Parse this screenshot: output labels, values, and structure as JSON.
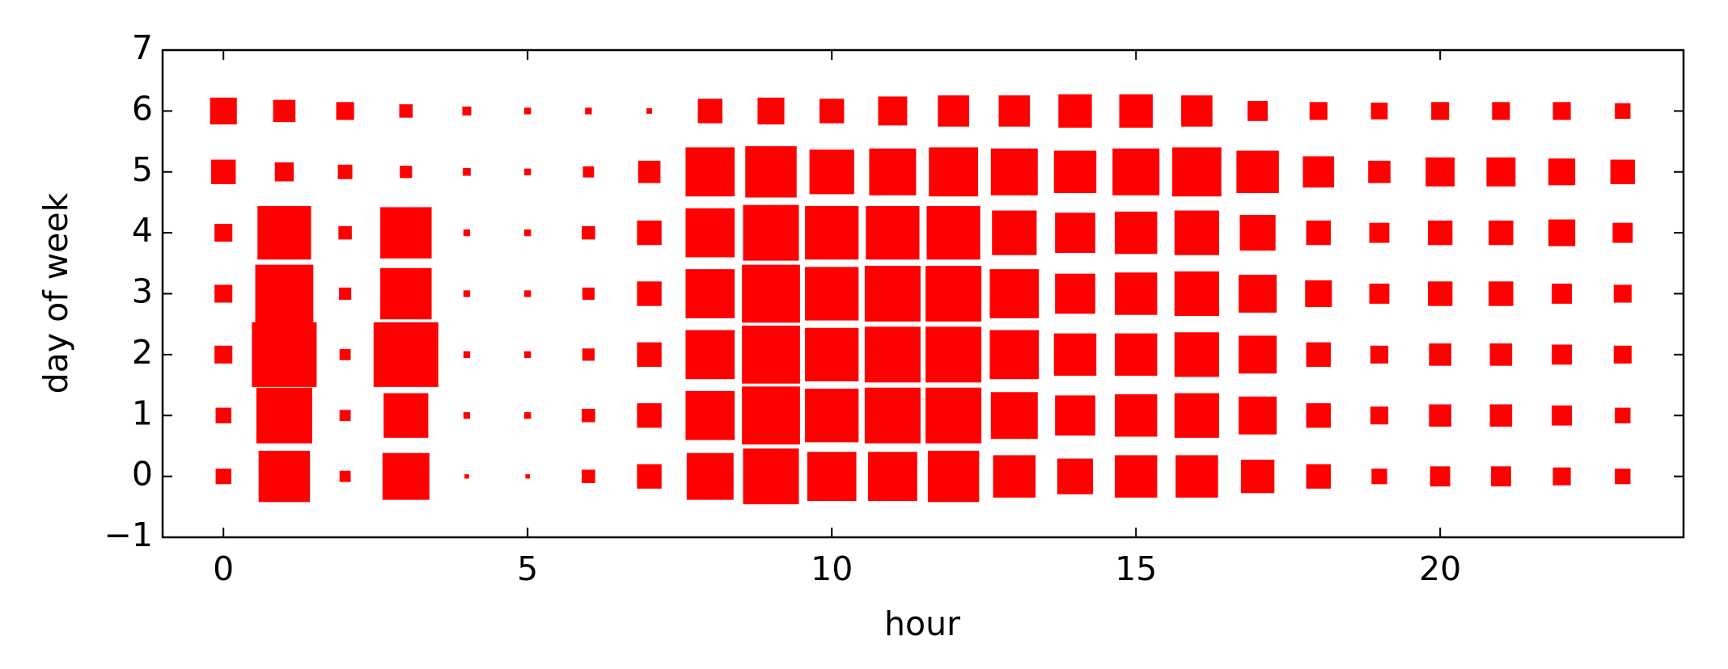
{
  "chart_data": {
    "type": "scatter",
    "marker": "square",
    "color": "#ff0000",
    "x_label": "hour",
    "y_label": "day of week",
    "xlim": [
      -1,
      24
    ],
    "ylim": [
      -1,
      7
    ],
    "xticks": [
      0,
      5,
      10,
      15,
      20
    ],
    "yticks": [
      {
        "value": -1,
        "label": "−1"
      },
      0,
      1,
      2,
      3,
      4,
      5,
      6,
      7
    ],
    "x": [
      0,
      1,
      2,
      3,
      4,
      5,
      6,
      7,
      8,
      9,
      10,
      11,
      12,
      13,
      14,
      15,
      16,
      17,
      18,
      19,
      20,
      21,
      22,
      23,
      0,
      1,
      2,
      3,
      4,
      5,
      6,
      7,
      8,
      9,
      10,
      11,
      12,
      13,
      14,
      15,
      16,
      17,
      18,
      19,
      20,
      21,
      22,
      23,
      0,
      1,
      2,
      3,
      4,
      5,
      6,
      7,
      8,
      9,
      10,
      11,
      12,
      13,
      14,
      15,
      16,
      17,
      18,
      19,
      20,
      21,
      22,
      23,
      0,
      1,
      2,
      3,
      4,
      5,
      6,
      7,
      8,
      9,
      10,
      11,
      12,
      13,
      14,
      15,
      16,
      17,
      18,
      19,
      20,
      21,
      22,
      23,
      0,
      1,
      2,
      3,
      4,
      5,
      6,
      7,
      8,
      9,
      10,
      11,
      12,
      13,
      14,
      15,
      16,
      17,
      18,
      19,
      20,
      21,
      22,
      23,
      0,
      1,
      2,
      3,
      4,
      5,
      6,
      7,
      8,
      9,
      10,
      11,
      12,
      13,
      14,
      15,
      16,
      17,
      18,
      19,
      20,
      21,
      22,
      23,
      0,
      1,
      2,
      3,
      4,
      5,
      6,
      7,
      8,
      9,
      10,
      11,
      12,
      13,
      14,
      15,
      16,
      17,
      18,
      19,
      20,
      21,
      22,
      23
    ],
    "y": [
      0,
      0,
      0,
      0,
      0,
      0,
      0,
      0,
      0,
      0,
      0,
      0,
      0,
      0,
      0,
      0,
      0,
      0,
      0,
      0,
      0,
      0,
      0,
      0,
      1,
      1,
      1,
      1,
      1,
      1,
      1,
      1,
      1,
      1,
      1,
      1,
      1,
      1,
      1,
      1,
      1,
      1,
      1,
      1,
      1,
      1,
      1,
      1,
      2,
      2,
      2,
      2,
      2,
      2,
      2,
      2,
      2,
      2,
      2,
      2,
      2,
      2,
      2,
      2,
      2,
      2,
      2,
      2,
      2,
      2,
      2,
      2,
      3,
      3,
      3,
      3,
      3,
      3,
      3,
      3,
      3,
      3,
      3,
      3,
      3,
      3,
      3,
      3,
      3,
      3,
      3,
      3,
      3,
      3,
      3,
      3,
      4,
      4,
      4,
      4,
      4,
      4,
      4,
      4,
      4,
      4,
      4,
      4,
      4,
      4,
      4,
      4,
      4,
      4,
      4,
      4,
      4,
      4,
      4,
      4,
      5,
      5,
      5,
      5,
      5,
      5,
      5,
      5,
      5,
      5,
      5,
      5,
      5,
      5,
      5,
      5,
      5,
      5,
      5,
      5,
      5,
      5,
      5,
      5,
      6,
      6,
      6,
      6,
      6,
      6,
      6,
      6,
      6,
      6,
      6,
      6,
      6,
      6,
      6,
      6,
      6,
      6,
      6,
      6,
      6,
      6,
      6,
      6
    ],
    "sizes": [
      14,
      46,
      10,
      42,
      4,
      4,
      12,
      22,
      42,
      50,
      44,
      44,
      46,
      38,
      32,
      38,
      38,
      30,
      22,
      14,
      18,
      18,
      16,
      14,
      14,
      50,
      10,
      40,
      6,
      6,
      12,
      22,
      44,
      52,
      48,
      50,
      50,
      42,
      36,
      38,
      40,
      34,
      22,
      16,
      20,
      20,
      18,
      14,
      16,
      58,
      10,
      58,
      6,
      6,
      11,
      22,
      44,
      52,
      48,
      50,
      50,
      44,
      38,
      38,
      40,
      34,
      22,
      16,
      20,
      20,
      18,
      16,
      16,
      52,
      11,
      46,
      6,
      6,
      11,
      22,
      44,
      52,
      48,
      50,
      50,
      44,
      36,
      38,
      40,
      34,
      24,
      18,
      22,
      22,
      18,
      16,
      16,
      48,
      12,
      46,
      6,
      6,
      12,
      22,
      44,
      50,
      48,
      48,
      48,
      40,
      36,
      38,
      40,
      32,
      22,
      18,
      22,
      22,
      24,
      18,
      22,
      17,
      13,
      11,
      7,
      6,
      10,
      20,
      44,
      46,
      40,
      42,
      44,
      42,
      38,
      42,
      44,
      38,
      28,
      20,
      26,
      26,
      24,
      22,
      24,
      20,
      16,
      12,
      8,
      6,
      6,
      5,
      22,
      24,
      22,
      26,
      28,
      28,
      30,
      30,
      28,
      18,
      16,
      15,
      16,
      16,
      16,
      14
    ]
  }
}
